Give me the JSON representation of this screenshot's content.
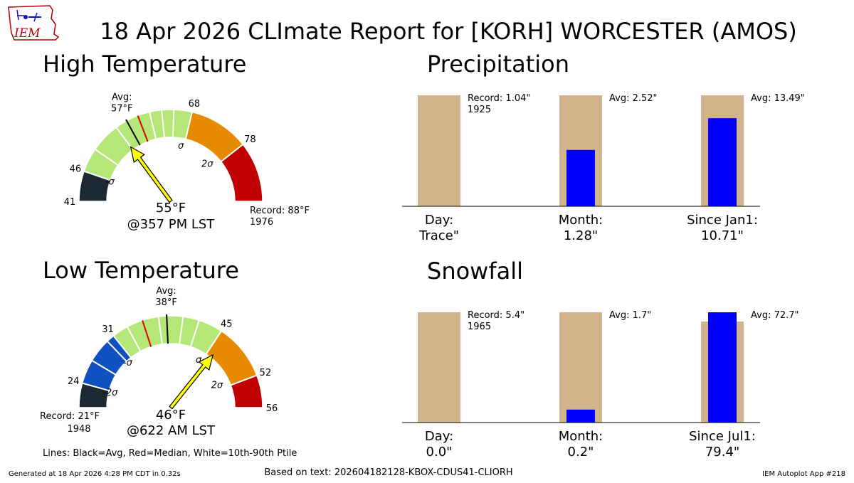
{
  "header": {
    "title": "18 Apr 2026 CLImate Report for [KORH] WORCESTER (AMOS)",
    "logo_text": "IEM"
  },
  "footer": {
    "generated": "Generated at 18 Apr 2026 4:28 PM CDT in 0.32s",
    "based_on": "Based on text: 202604182128-KBOX-CDUS41-CLIORH",
    "app": "IEM Autoplot App #218",
    "lines_note": "Lines: Black=Avg, Red=Median, White=10th-90th Ptile"
  },
  "chart_data": [
    {
      "type": "gauge",
      "id": "high",
      "title": "High Temperature",
      "min": 41,
      "max": 88,
      "thresholds": [
        41,
        46,
        68,
        78,
        88
      ],
      "threshold_labels": [
        "41",
        "46",
        "68",
        "78"
      ],
      "segment_colors": [
        "#1c2833",
        "#b5e778",
        "#e68a00",
        "#c00000"
      ],
      "avg": 57,
      "median": 59,
      "percentile_lines": [
        50,
        55,
        61,
        63,
        65
      ],
      "sigma_labels": [
        "-σ",
        "σ",
        "2σ"
      ],
      "sigma_values": [
        46,
        68,
        78
      ],
      "avg_label_line1": "Avg:",
      "avg_label_line2": "57°F",
      "value": 55,
      "value_label": "55°F",
      "time_label": "@357 PM LST",
      "record_label": "Record: 88°F",
      "record_year": "1976"
    },
    {
      "type": "gauge",
      "id": "low",
      "title": "Low Temperature",
      "min": 21,
      "max": 56,
      "thresholds": [
        21,
        24,
        31,
        45,
        52,
        56
      ],
      "threshold_labels": [
        "24",
        "31",
        "45",
        "52",
        "56"
      ],
      "segment_colors": [
        "#1c2833",
        "#1150c0",
        "#b5e778",
        "#e68a00",
        "#c00000"
      ],
      "avg": 38,
      "median": 35,
      "percentile_lines": [
        27,
        30,
        33,
        37,
        40,
        42
      ],
      "sigma_labels": [
        "-2σ",
        "-σ",
        "σ",
        "2σ"
      ],
      "sigma_values": [
        24,
        31,
        45,
        52
      ],
      "avg_label_line1": "Avg:",
      "avg_label_line2": "38°F",
      "value": 46,
      "value_label": "46°F",
      "time_label": "@622 AM LST",
      "record_label": "Record: 21°F",
      "record_year": "1948"
    },
    {
      "type": "bar",
      "id": "precip",
      "title": "Precipitation",
      "categories": [
        "Day:",
        "Month:",
        "Since Jan1:"
      ],
      "value_labels": [
        "Trace\"",
        "1.28\"",
        "10.71\""
      ],
      "values": [
        0.0001,
        1.28,
        10.71
      ],
      "background_labels": [
        "Record: 1.04\"",
        "Avg: 2.52\"",
        "Avg: 13.49\""
      ],
      "background_sublabels": [
        "1925",
        "",
        ""
      ],
      "background_values": [
        1.04,
        2.52,
        13.49
      ],
      "background_color": "#d2b48c",
      "value_color": "#0000ff"
    },
    {
      "type": "bar",
      "id": "snow",
      "title": "Snowfall",
      "categories": [
        "Day:",
        "Month:",
        "Since Jul1:"
      ],
      "value_labels": [
        "0.0\"",
        "0.2\"",
        "79.4\""
      ],
      "values": [
        0.0,
        0.2,
        79.4
      ],
      "background_labels": [
        "Record: 5.4\"",
        "Avg: 1.7\"",
        "Avg: 72.7\""
      ],
      "background_sublabels": [
        "1965",
        "",
        ""
      ],
      "background_values": [
        5.4,
        1.7,
        72.7
      ],
      "background_color": "#d2b48c",
      "value_color": "#0000ff"
    }
  ]
}
